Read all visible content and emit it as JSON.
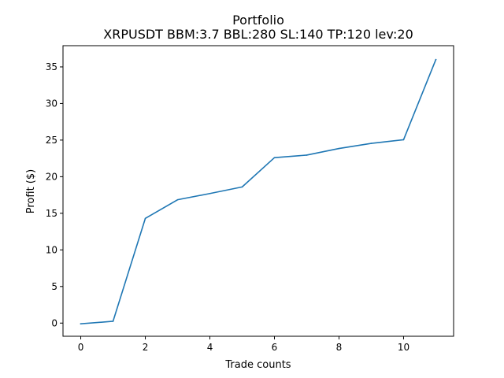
{
  "chart_data": {
    "type": "line",
    "title": "Portfolio",
    "subtitle": "XRPUSDT BBM:3.7 BBL:280 SL:140 TP:120 lev:20",
    "xlabel": "Trade counts",
    "ylabel": "Profit ($)",
    "xlim": [
      -0.55,
      11.55
    ],
    "ylim": [
      -1.8,
      37.9
    ],
    "xticks": [
      0,
      2,
      4,
      6,
      8,
      10
    ],
    "yticks": [
      0,
      5,
      10,
      15,
      20,
      25,
      30,
      35
    ],
    "grid": false,
    "series": [
      {
        "color": "#1f77b4",
        "x": [
          0,
          1,
          2,
          3,
          4,
          5,
          6,
          7,
          8,
          9,
          10,
          11
        ],
        "values": [
          -0.1,
          0.25,
          14.3,
          16.85,
          17.7,
          18.6,
          22.6,
          22.95,
          23.85,
          24.55,
          25.05,
          36.0
        ]
      }
    ]
  }
}
